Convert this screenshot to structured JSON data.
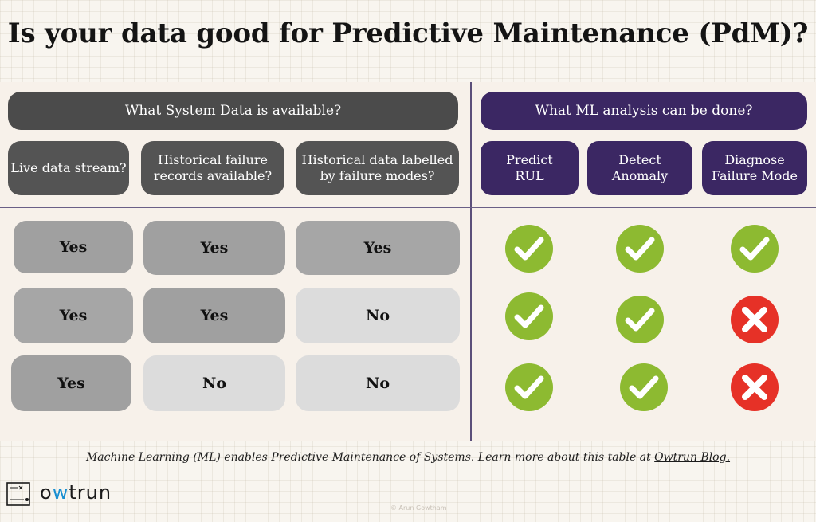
{
  "title": "Is your data good for Predictive Maintenance (PdM)?",
  "left_header": "What System Data is available?",
  "right_header": "What ML analysis can be done?",
  "data_columns": [
    "Live data stream?",
    "Historical failure records available?",
    "Historical data labelled by failure modes?"
  ],
  "ml_columns": [
    "Predict RUL",
    "Detect Anomaly",
    "Diagnose Failure Mode"
  ],
  "rows": [
    {
      "data": [
        "Yes",
        "Yes",
        "Yes"
      ],
      "ml": [
        "check",
        "check",
        "check"
      ]
    },
    {
      "data": [
        "Yes",
        "Yes",
        "No"
      ],
      "ml": [
        "check",
        "check",
        "cross"
      ]
    },
    {
      "data": [
        "Yes",
        "No",
        "No"
      ],
      "ml": [
        "check",
        "check",
        "cross"
      ]
    }
  ],
  "footer": {
    "text": "Machine Learning (ML) enables Predictive Maintenance of Systems. Learn more about this table at ",
    "link": "Owtrun Blog."
  },
  "brand": {
    "name_prefix": "o",
    "name_accent": "w",
    "name_suffix": "trun"
  },
  "watermark": "© Arun Gowtham",
  "colors": {
    "check": "#8dba31",
    "cross": "#e63127",
    "purple": "#3b2763",
    "dark_gray": "#4b4b4b",
    "brand_accent": "#1a8fd1"
  },
  "icons": {
    "check": "check-circle-icon",
    "cross": "cross-circle-icon"
  }
}
